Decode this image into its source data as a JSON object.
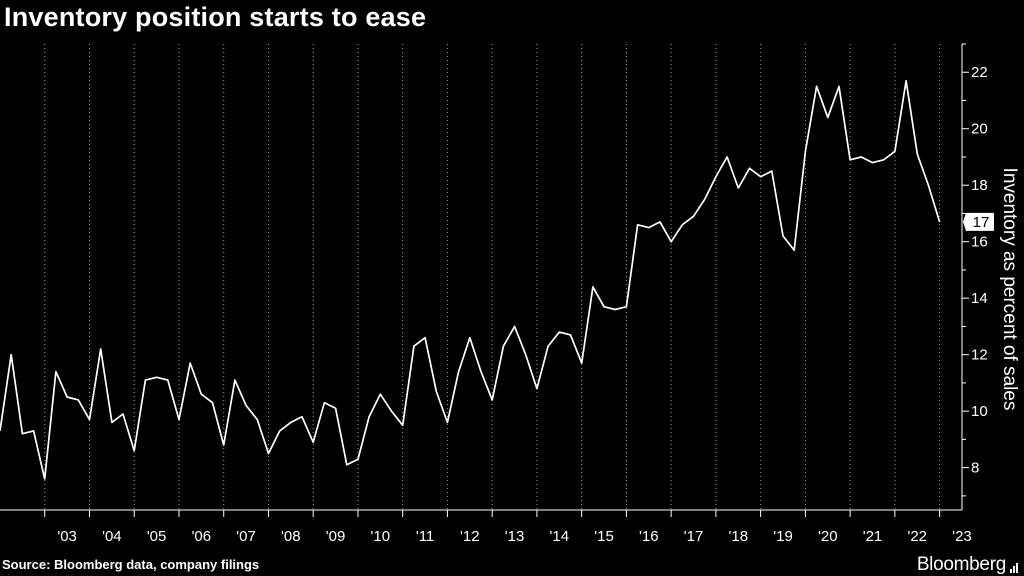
{
  "chart_data": {
    "type": "line",
    "title": "Inventory position starts to ease",
    "ylabel": "Inventory as percent of sales",
    "ylim": [
      6.5,
      23
    ],
    "xlim": [
      2002.0,
      2023.5
    ],
    "y_ticks": [
      8,
      10,
      12,
      14,
      16,
      18,
      20,
      22
    ],
    "x_tick_labels": [
      "'03",
      "'04",
      "'05",
      "'06",
      "'07",
      "'08",
      "'09",
      "'10",
      "'11",
      "'12",
      "'13",
      "'14",
      "'15",
      "'16",
      "'17",
      "'18",
      "'19",
      "'20",
      "'21",
      "'22",
      "'23"
    ],
    "x_tick_years": [
      2003,
      2004,
      2005,
      2006,
      2007,
      2008,
      2009,
      2010,
      2011,
      2012,
      2013,
      2014,
      2015,
      2016,
      2017,
      2018,
      2019,
      2020,
      2021,
      2022,
      2023
    ],
    "last_value_label": "17",
    "grid": true,
    "series": [
      {
        "x": [
          2002.0,
          2002.25,
          2002.5,
          2002.75,
          2003.0,
          2003.25,
          2003.5,
          2003.75,
          2004.0,
          2004.25,
          2004.5,
          2004.75,
          2005.0,
          2005.25,
          2005.5,
          2005.75,
          2006.0,
          2006.25,
          2006.5,
          2006.75,
          2007.0,
          2007.25,
          2007.5,
          2007.75,
          2008.0,
          2008.25,
          2008.5,
          2008.75,
          2009.0,
          2009.25,
          2009.5,
          2009.75,
          2010.0,
          2010.25,
          2010.5,
          2010.75,
          2011.0,
          2011.25,
          2011.5,
          2011.75,
          2012.0,
          2012.25,
          2012.5,
          2012.75,
          2013.0,
          2013.25,
          2013.5,
          2013.75,
          2014.0,
          2014.25,
          2014.5,
          2014.75,
          2015.0,
          2015.25,
          2015.5,
          2015.75,
          2016.0,
          2016.25,
          2016.5,
          2016.75,
          2017.0,
          2017.25,
          2017.5,
          2017.75,
          2018.0,
          2018.25,
          2018.5,
          2018.75,
          2019.0,
          2019.25,
          2019.5,
          2019.75,
          2020.0,
          2020.25,
          2020.5,
          2020.75,
          2021.0,
          2021.25,
          2021.5,
          2021.75,
          2022.0,
          2022.25,
          2022.5,
          2022.75,
          2023.0
        ],
        "y": [
          9.3,
          12.0,
          9.2,
          9.3,
          7.6,
          11.4,
          10.5,
          10.4,
          9.7,
          12.2,
          9.6,
          9.9,
          8.6,
          11.1,
          11.2,
          11.1,
          9.7,
          11.7,
          10.6,
          10.3,
          8.8,
          11.1,
          10.2,
          9.7,
          8.5,
          9.3,
          9.6,
          9.8,
          8.9,
          10.3,
          10.1,
          8.1,
          8.3,
          9.8,
          10.6,
          10.0,
          9.5,
          12.3,
          12.6,
          10.7,
          9.6,
          11.4,
          12.6,
          11.4,
          10.4,
          12.3,
          13.0,
          12.0,
          10.8,
          12.3,
          12.8,
          12.7,
          11.7,
          14.4,
          13.7,
          13.6,
          13.7,
          16.6,
          16.5,
          16.7,
          16.0,
          16.6,
          16.9,
          17.5,
          18.3,
          19.0,
          17.9,
          18.6,
          18.3,
          18.5,
          16.2,
          15.7,
          19.2,
          21.5,
          20.4,
          21.5,
          18.9,
          19.0,
          18.8,
          18.9,
          19.2,
          21.7,
          19.1,
          18.0,
          16.7
        ]
      }
    ]
  },
  "source_note": "Source: Bloomberg data, company filings",
  "brand": "Bloomberg",
  "colors": {
    "background": "#000000",
    "line": "#ffffff",
    "grid": "#9a9a9a"
  }
}
